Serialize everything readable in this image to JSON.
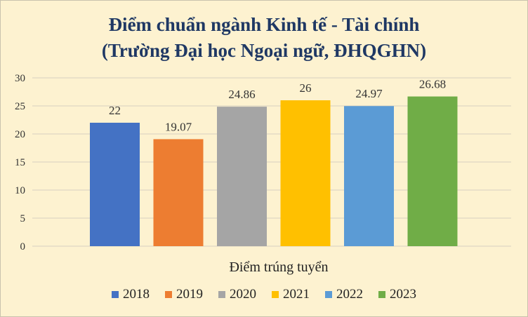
{
  "chart_data": {
    "type": "bar",
    "title": "Điểm chuẩn ngành Kinh tế - Tài chính",
    "subtitle": "(Trường Đại học Ngoại ngữ, ĐHQGHN)",
    "xlabel": "Điểm trúng tuyển",
    "ylabel": "",
    "ylim": [
      0,
      30
    ],
    "yticks": [
      "0",
      "5",
      "10",
      "15",
      "20",
      "25",
      "30"
    ],
    "grid": true,
    "legend_position": "bottom",
    "series": [
      {
        "name": "2018",
        "value": 22,
        "label": "22",
        "color": "#4472c4"
      },
      {
        "name": "2019",
        "value": 19.07,
        "label": "19.07",
        "color": "#ed7d31"
      },
      {
        "name": "2020",
        "value": 24.86,
        "label": "24.86",
        "color": "#a5a5a5"
      },
      {
        "name": "2021",
        "value": 26,
        "label": "26",
        "color": "#ffc000"
      },
      {
        "name": "2022",
        "value": 24.97,
        "label": "24.97",
        "color": "#5b9bd5"
      },
      {
        "name": "2023",
        "value": 26.68,
        "label": "26.68",
        "color": "#70ad47"
      }
    ]
  }
}
